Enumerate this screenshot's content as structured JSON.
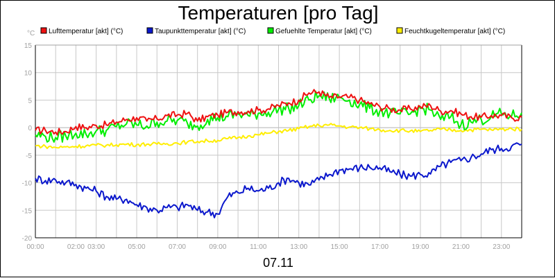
{
  "chart_data": {
    "type": "line",
    "title": "Temperaturen [pro Tag]",
    "ylabel": "°C",
    "xlabel": "07.11",
    "ylim": [
      -20,
      15
    ],
    "yticks": [
      15,
      10,
      5,
      0,
      -5,
      -10,
      -15,
      -20
    ],
    "xlim": [
      0,
      24
    ],
    "xticks": [
      {
        "value": 0,
        "label": "00:00"
      },
      {
        "value": 2,
        "label": "02:00"
      },
      {
        "value": 3,
        "label": "03:00"
      },
      {
        "value": 5,
        "label": "05:00"
      },
      {
        "value": 7,
        "label": "07:00"
      },
      {
        "value": 9,
        "label": "09:00"
      },
      {
        "value": 11,
        "label": "11:00"
      },
      {
        "value": 13,
        "label": "13:00"
      },
      {
        "value": 15,
        "label": "15:00"
      },
      {
        "value": 17,
        "label": "17:00"
      },
      {
        "value": 19,
        "label": "19:00"
      },
      {
        "value": 21,
        "label": "21:00"
      },
      {
        "value": 23,
        "label": "23:00"
      }
    ],
    "grid": true,
    "legend_position": "top",
    "series": [
      {
        "name": "Lufttemperatur [akt] (°C)",
        "color": "#ee1111",
        "x": [
          0,
          0.5,
          1,
          1.5,
          2,
          2.5,
          3,
          3.5,
          4,
          4.5,
          5,
          5.5,
          6,
          6.5,
          7,
          7.5,
          8,
          8.5,
          9,
          9.5,
          10,
          10.5,
          11,
          11.5,
          12,
          12.5,
          13,
          13.5,
          14,
          14.5,
          15,
          15.5,
          16,
          16.5,
          17,
          17.5,
          18,
          18.5,
          19,
          19.5,
          20,
          20.5,
          21,
          21.5,
          22,
          22.5,
          23,
          23.5,
          24
        ],
        "values": [
          -0.5,
          -0.5,
          -0.8,
          -0.7,
          0.2,
          0.0,
          0.4,
          0.5,
          1.0,
          1.5,
          1.8,
          1.2,
          1.6,
          2.2,
          2.3,
          2.6,
          1.2,
          2.0,
          2.3,
          2.8,
          2.9,
          3.0,
          3.2,
          3.4,
          4.0,
          4.5,
          5.0,
          6.3,
          6.5,
          5.5,
          5.6,
          5.5,
          5.0,
          4.3,
          3.8,
          3.4,
          3.2,
          3.4,
          3.8,
          4.0,
          3.0,
          3.1,
          2.5,
          2.0,
          1.9,
          2.2,
          2.2,
          1.8,
          1.9
        ]
      },
      {
        "name": "Taupunkttemperatur [akt] (°C)",
        "color": "#0a17cc",
        "x": [
          0,
          0.5,
          1,
          1.5,
          2,
          2.5,
          3,
          3.5,
          4,
          4.5,
          5,
          5.5,
          6,
          6.5,
          7,
          7.5,
          8,
          8.5,
          9,
          9.5,
          10,
          10.5,
          11,
          11.5,
          12,
          12.5,
          13,
          13.5,
          14,
          14.5,
          15,
          15.5,
          16,
          16.5,
          17,
          17.5,
          18,
          18.5,
          19,
          19.5,
          20,
          20.5,
          21,
          21.5,
          22,
          22.5,
          23,
          23.5,
          24
        ],
        "values": [
          -9.2,
          -9.6,
          -9.5,
          -10.0,
          -10.3,
          -11.0,
          -11.5,
          -12.5,
          -13.0,
          -13.0,
          -14.0,
          -14.5,
          -15.0,
          -14.5,
          -14.5,
          -14.0,
          -15.0,
          -15.3,
          -15.7,
          -12.5,
          -11.8,
          -11.0,
          -11.5,
          -11.0,
          -10.0,
          -9.2,
          -10.0,
          -10.4,
          -9.5,
          -8.5,
          -7.7,
          -7.5,
          -7.3,
          -7.2,
          -7.3,
          -8.0,
          -8.5,
          -8.8,
          -8.5,
          -8.4,
          -7.0,
          -6.3,
          -6.0,
          -5.4,
          -4.8,
          -4.0,
          -3.8,
          -3.4,
          -3.0
        ]
      },
      {
        "name": "Gefuehlte Temperatur [akt] (°C)",
        "color": "#00ee00",
        "x": [
          0,
          0.5,
          1,
          1.5,
          2,
          2.5,
          3,
          3.5,
          4,
          4.5,
          5,
          5.5,
          6,
          6.5,
          7,
          7.5,
          8,
          8.5,
          9,
          9.5,
          10,
          10.5,
          11,
          11.5,
          12,
          12.5,
          13,
          13.5,
          14,
          14.5,
          15,
          15.5,
          16,
          16.5,
          17,
          17.5,
          18,
          18.5,
          19,
          19.5,
          20,
          20.5,
          21,
          21.5,
          22,
          22.5,
          23,
          23.5,
          24
        ],
        "values": [
          -1.3,
          -1.6,
          -1.8,
          -1.5,
          -1.0,
          -1.2,
          -0.6,
          -0.5,
          0.2,
          0.7,
          0.5,
          0.3,
          1.0,
          1.2,
          1.3,
          0.8,
          0.3,
          1.5,
          1.8,
          2.0,
          2.5,
          2.2,
          2.6,
          2.8,
          3.3,
          3.5,
          4.0,
          5.0,
          5.8,
          5.3,
          5.5,
          5.0,
          4.2,
          3.5,
          3.0,
          2.6,
          2.5,
          2.5,
          3.5,
          3.2,
          1.5,
          2.0,
          0.5,
          1.0,
          1.5,
          2.0,
          2.5,
          2.1,
          2.7
        ]
      },
      {
        "name": "Feuchtkugeltemperatur [akt] (°C)",
        "color": "#ffee00",
        "x": [
          0,
          0.5,
          1,
          1.5,
          2,
          2.5,
          3,
          3.5,
          4,
          4.5,
          5,
          5.5,
          6,
          6.5,
          7,
          7.5,
          8,
          8.5,
          9,
          9.5,
          10,
          10.5,
          11,
          11.5,
          12,
          12.5,
          13,
          13.5,
          14,
          14.5,
          15,
          15.5,
          16,
          16.5,
          17,
          17.5,
          18,
          18.5,
          19,
          19.5,
          20,
          20.5,
          21,
          21.5,
          22,
          22.5,
          23,
          23.5,
          24
        ],
        "values": [
          -3.3,
          -3.4,
          -3.6,
          -3.5,
          -3.4,
          -3.3,
          -3.2,
          -3.2,
          -3.1,
          -3.0,
          -3.1,
          -3.0,
          -3.0,
          -2.9,
          -2.8,
          -2.6,
          -2.5,
          -2.4,
          -2.3,
          -2.0,
          -1.8,
          -1.5,
          -1.3,
          -1.0,
          -0.7,
          -0.5,
          -0.2,
          0.2,
          0.4,
          0.5,
          0.3,
          0.1,
          0.0,
          -0.2,
          -0.4,
          -0.5,
          -0.5,
          -0.6,
          -0.7,
          -0.5,
          -0.3,
          -0.4,
          -0.5,
          -0.4,
          -0.3,
          -0.4,
          -0.3,
          -0.2,
          -0.3
        ]
      }
    ]
  }
}
